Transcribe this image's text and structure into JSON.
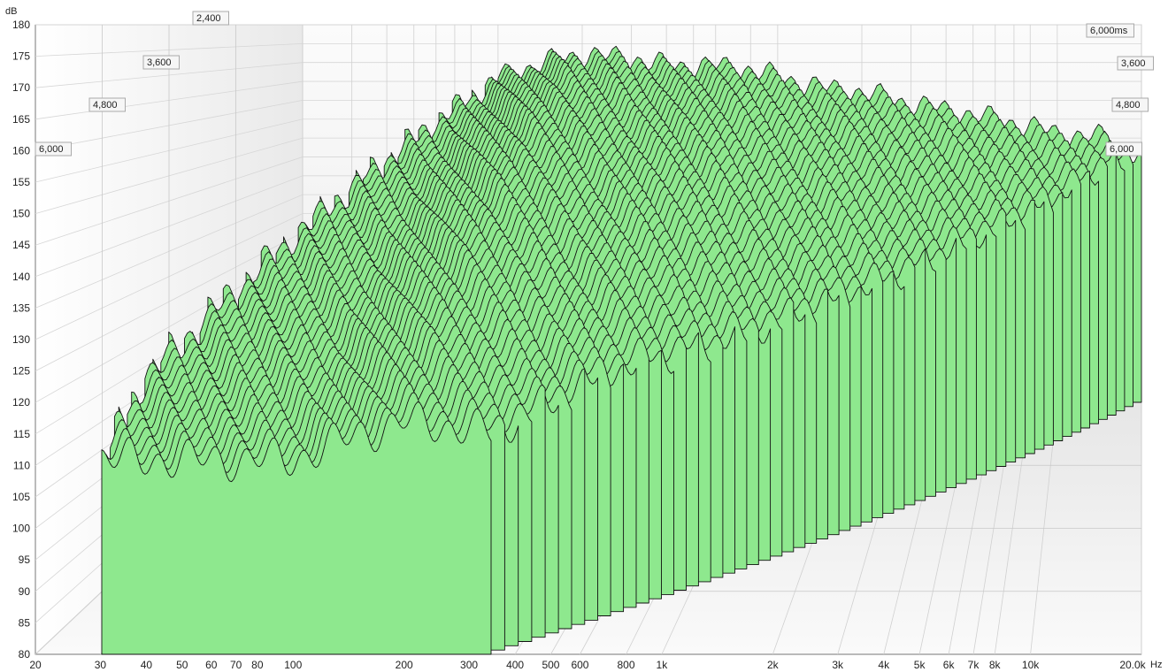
{
  "chart_data": {
    "type": "area",
    "y_unit": "dB",
    "x_unit": "Hz",
    "ylim": [
      80,
      180
    ],
    "xlim": [
      20,
      20000
    ],
    "x_scale": "log",
    "y_ticks": [
      "180",
      "175",
      "170",
      "165",
      "160",
      "155",
      "150",
      "145",
      "140",
      "135",
      "130",
      "125",
      "120",
      "115",
      "110",
      "105",
      "100",
      "95",
      "90",
      "85",
      "80"
    ],
    "x_ticks": [
      {
        "f": 20,
        "label": "20"
      },
      {
        "f": 30,
        "label": "30"
      },
      {
        "f": 40,
        "label": "40"
      },
      {
        "f": 50,
        "label": "50"
      },
      {
        "f": 60,
        "label": "60"
      },
      {
        "f": 70,
        "label": "70"
      },
      {
        "f": 80,
        "label": "80"
      },
      {
        "f": 100,
        "label": "100"
      },
      {
        "f": 200,
        "label": "200"
      },
      {
        "f": 300,
        "label": "300"
      },
      {
        "f": 400,
        "label": "400"
      },
      {
        "f": 500,
        "label": "500"
      },
      {
        "f": 600,
        "label": "600"
      },
      {
        "f": 800,
        "label": "800"
      },
      {
        "f": 1000,
        "label": "1k"
      },
      {
        "f": 2000,
        "label": "2k"
      },
      {
        "f": 3000,
        "label": "3k"
      },
      {
        "f": 4000,
        "label": "4k"
      },
      {
        "f": 5000,
        "label": "5k"
      },
      {
        "f": 6000,
        "label": "6k"
      },
      {
        "f": 7000,
        "label": "7k"
      },
      {
        "f": 8000,
        "label": "8k"
      },
      {
        "f": 10000,
        "label": "10k"
      },
      {
        "f": 20000,
        "label": "20.0k"
      }
    ],
    "time_labels_left": [
      "2,400",
      "3,600",
      "4,800",
      "6,000"
    ],
    "time_labels_right": [
      "6,000ms",
      "3,600",
      "4,800",
      "6,000"
    ],
    "slice_count": 60,
    "time_range_ms": [
      0,
      6000
    ],
    "fill_color": "#8ee88e",
    "line_color": "#111111",
    "grid": true,
    "envelope": [
      {
        "f": 100,
        "db": 166
      },
      {
        "f": 150,
        "db": 170
      },
      {
        "f": 200,
        "db": 172
      },
      {
        "f": 300,
        "db": 171
      },
      {
        "f": 400,
        "db": 169
      },
      {
        "f": 600,
        "db": 169
      },
      {
        "f": 800,
        "db": 168
      },
      {
        "f": 1000,
        "db": 166
      },
      {
        "f": 1500,
        "db": 163
      },
      {
        "f": 2000,
        "db": 162
      },
      {
        "f": 3000,
        "db": 159
      },
      {
        "f": 5000,
        "db": 156
      },
      {
        "f": 8000,
        "db": 153
      },
      {
        "f": 10000,
        "db": 151
      },
      {
        "f": 15000,
        "db": 150
      },
      {
        "f": 20000,
        "db": 145
      }
    ]
  }
}
